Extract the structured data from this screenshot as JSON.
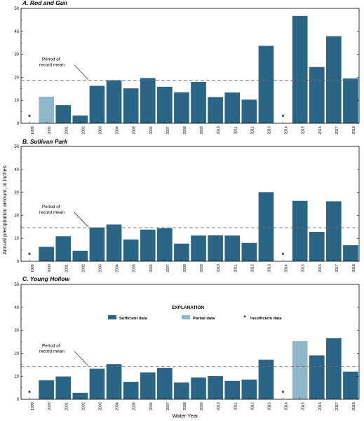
{
  "chart_data": {
    "type": "bar",
    "xlabel": "Water Year",
    "ylabel": "Annual precipitation amount, in inches",
    "ylim": [
      0,
      50
    ],
    "yticks": [
      0,
      10,
      20,
      30,
      40,
      50
    ],
    "categories": [
      "1999",
      "2000",
      "2001",
      "2002",
      "2003",
      "2004",
      "2005",
      "2006",
      "2007",
      "2008",
      "2009",
      "2010",
      "2011",
      "2012",
      "2013",
      "2014",
      "2015",
      "2016",
      "2017",
      "2018"
    ],
    "colors": {
      "sufficient": "#2b6585",
      "partial": "#8fb6c9",
      "mean_line": "#707070",
      "insufficient_marker": "#000000"
    },
    "annotation": {
      "line1": "Period of",
      "line2": "record mean"
    },
    "insufficient_marker": "*",
    "legend": {
      "title": "EXPLANATION",
      "placement": "panel C, top-center",
      "items": [
        {
          "label": "Sufficient data",
          "kind": "sufficient"
        },
        {
          "label": "Partial data",
          "kind": "partial"
        },
        {
          "label": "Insufficient data",
          "kind": "insufficient"
        }
      ]
    },
    "panels": [
      {
        "title": "A. Rod and Gun",
        "mean": 18.7,
        "values": [
          null,
          11.6,
          7.9,
          3.4,
          16.3,
          18.7,
          15.2,
          19.7,
          15.9,
          13.5,
          18.0,
          11.4,
          13.4,
          10.3,
          33.7,
          null,
          46.7,
          24.5,
          37.9,
          19.5
        ],
        "status": [
          "insufficient",
          "partial",
          "sufficient",
          "sufficient",
          "sufficient",
          "sufficient",
          "sufficient",
          "sufficient",
          "sufficient",
          "sufficient",
          "sufficient",
          "sufficient",
          "sufficient",
          "sufficient",
          "sufficient",
          "insufficient",
          "sufficient",
          "sufficient",
          "sufficient",
          "sufficient"
        ]
      },
      {
        "title": "B. Sullivan Park",
        "mean": 14.6,
        "values": [
          null,
          6.3,
          10.9,
          4.6,
          14.7,
          16.0,
          9.5,
          13.8,
          14.4,
          7.7,
          11.2,
          11.3,
          11.2,
          8.0,
          30.1,
          null,
          26.3,
          12.8,
          26.1,
          7.0
        ],
        "status": [
          "insufficient",
          "sufficient",
          "sufficient",
          "sufficient",
          "sufficient",
          "sufficient",
          "sufficient",
          "sufficient",
          "sufficient",
          "sufficient",
          "sufficient",
          "sufficient",
          "sufficient",
          "sufficient",
          "sufficient",
          "insufficient",
          "sufficient",
          "sufficient",
          "sufficient",
          "sufficient"
        ]
      },
      {
        "title": "C. Young Hollow",
        "mean": 14.2,
        "values": [
          null,
          8.3,
          9.9,
          2.8,
          13.3,
          15.3,
          7.6,
          11.7,
          13.7,
          7.3,
          9.5,
          10.1,
          8.0,
          8.6,
          17.2,
          null,
          25.3,
          19.1,
          26.6,
          12.0
        ],
        "status": [
          "insufficient",
          "sufficient",
          "sufficient",
          "sufficient",
          "sufficient",
          "sufficient",
          "sufficient",
          "sufficient",
          "sufficient",
          "sufficient",
          "sufficient",
          "sufficient",
          "sufficient",
          "sufficient",
          "sufficient",
          "insufficient",
          "partial",
          "sufficient",
          "sufficient",
          "sufficient"
        ]
      }
    ]
  }
}
